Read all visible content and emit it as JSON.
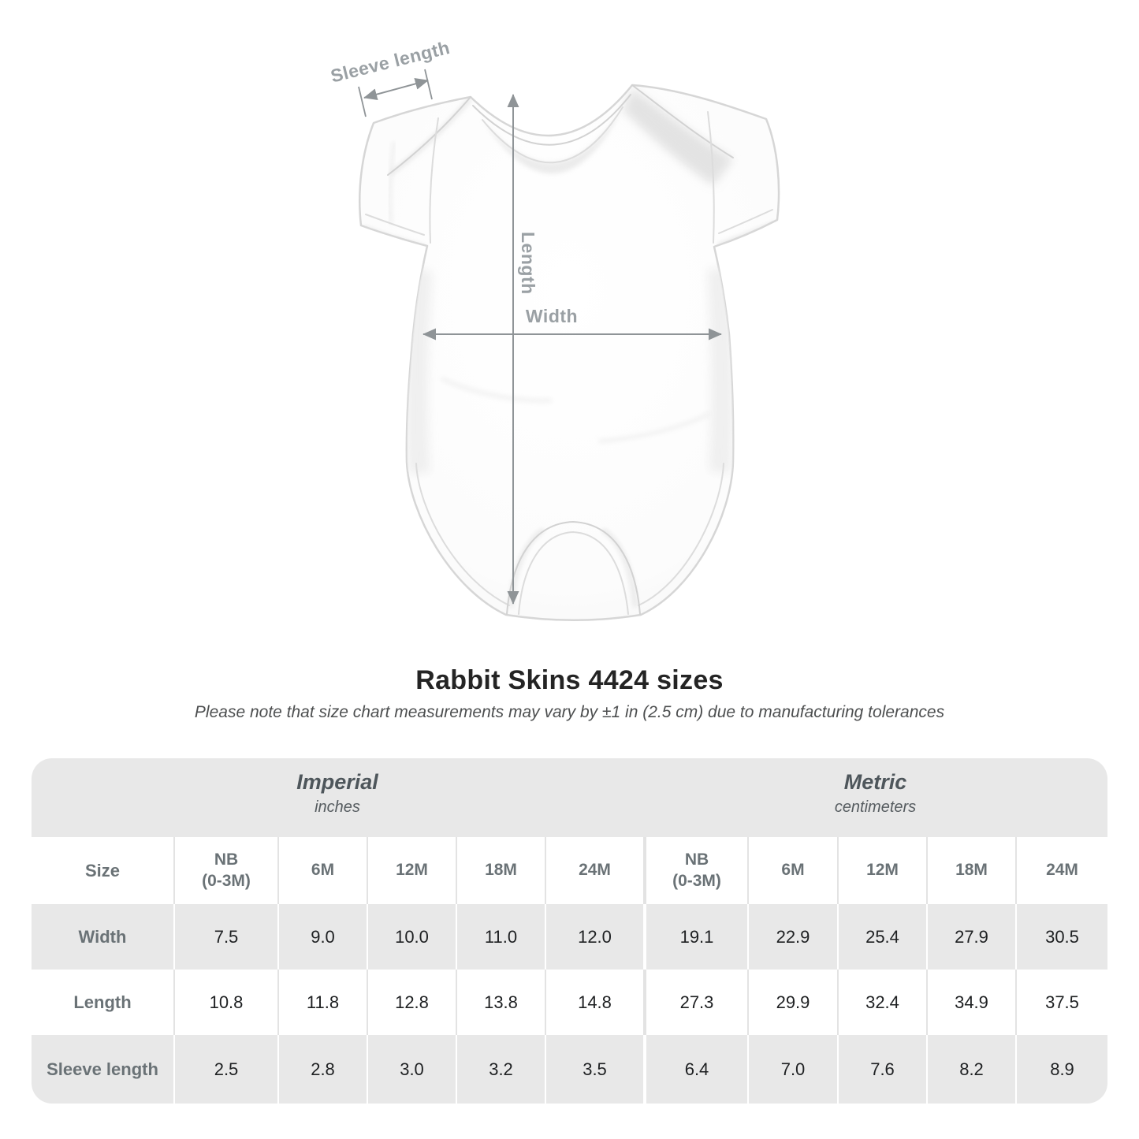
{
  "figure": {
    "sleeve_length_label": "Sleeve length",
    "length_label": "Length",
    "width_label": "Width"
  },
  "title": "Rabbit Skins 4424 sizes",
  "subtitle": "Please note that size chart measurements may vary by ±1 in (2.5 cm) due to manufacturing tolerances",
  "table": {
    "imperial": {
      "name": "Imperial",
      "unit": "inches"
    },
    "metric": {
      "name": "Metric",
      "unit": "centimeters"
    },
    "size_header": "Size",
    "columns": [
      {
        "label": "NB",
        "sub": "(0-3M)"
      },
      {
        "label": "6M",
        "sub": ""
      },
      {
        "label": "12M",
        "sub": ""
      },
      {
        "label": "18M",
        "sub": ""
      },
      {
        "label": "24M",
        "sub": ""
      },
      {
        "label": "NB",
        "sub": "(0-3M)"
      },
      {
        "label": "6M",
        "sub": ""
      },
      {
        "label": "12M",
        "sub": ""
      },
      {
        "label": "18M",
        "sub": ""
      },
      {
        "label": "24M",
        "sub": ""
      }
    ],
    "rows": [
      {
        "label": "Width",
        "values": [
          "7.5",
          "9.0",
          "10.0",
          "11.0",
          "12.0",
          "19.1",
          "22.9",
          "25.4",
          "27.9",
          "30.5"
        ]
      },
      {
        "label": "Length",
        "values": [
          "10.8",
          "11.8",
          "12.8",
          "13.8",
          "14.8",
          "27.3",
          "29.9",
          "32.4",
          "34.9",
          "37.5"
        ]
      },
      {
        "label": "Sleeve length",
        "values": [
          "2.5",
          "2.8",
          "3.0",
          "3.2",
          "3.5",
          "6.4",
          "7.0",
          "7.6",
          "8.2",
          "8.9"
        ]
      }
    ]
  },
  "colors": {
    "table_band": "#e8e8e8",
    "annotation_line": "#8f9497",
    "annotation_text": "#9aa0a4",
    "header_text": "#6a7276",
    "value_text": "#1e2022"
  }
}
